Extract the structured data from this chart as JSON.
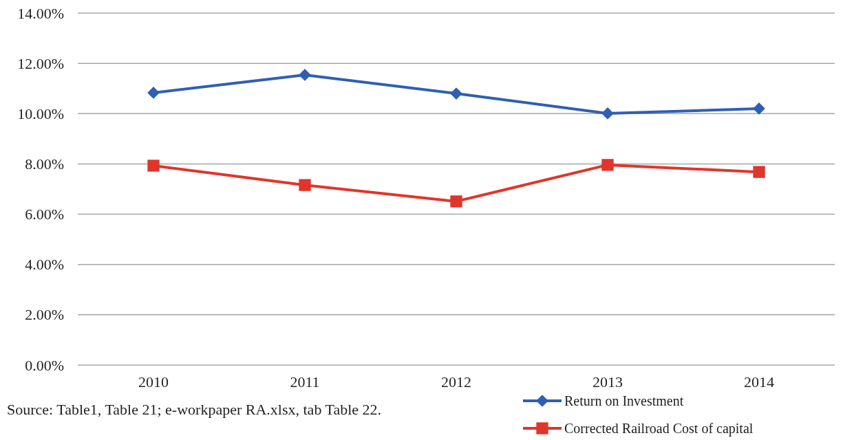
{
  "chart_data": {
    "type": "line",
    "categories": [
      "2010",
      "2011",
      "2012",
      "2013",
      "2014"
    ],
    "series": [
      {
        "name": "Return on Investment",
        "color": "#2f5fb3",
        "marker": "diamond",
        "values": [
          10.83,
          11.54,
          10.8,
          10.01,
          10.2
        ]
      },
      {
        "name": "Corrected Railroad Cost of capital",
        "color": "#e0352b",
        "marker": "square",
        "values": [
          7.93,
          7.16,
          6.51,
          7.96,
          7.68
        ]
      }
    ],
    "ylim": [
      0,
      14
    ],
    "yticks": [
      {
        "value": 0,
        "label": "0.00%"
      },
      {
        "value": 2,
        "label": "2.00%"
      },
      {
        "value": 4,
        "label": "4.00%"
      },
      {
        "value": 6,
        "label": "6.00%"
      },
      {
        "value": 8,
        "label": "8.00%"
      },
      {
        "value": 10,
        "label": "10.00%"
      },
      {
        "value": 12,
        "label": "12.00%"
      },
      {
        "value": 14,
        "label": "14.00%"
      }
    ],
    "grid": "y",
    "legend": "bottom right",
    "line_style": "solid",
    "annotations": [
      "Source: Table1, Table 21; e-workpaper RA.xlsx, tab Table 22."
    ]
  }
}
